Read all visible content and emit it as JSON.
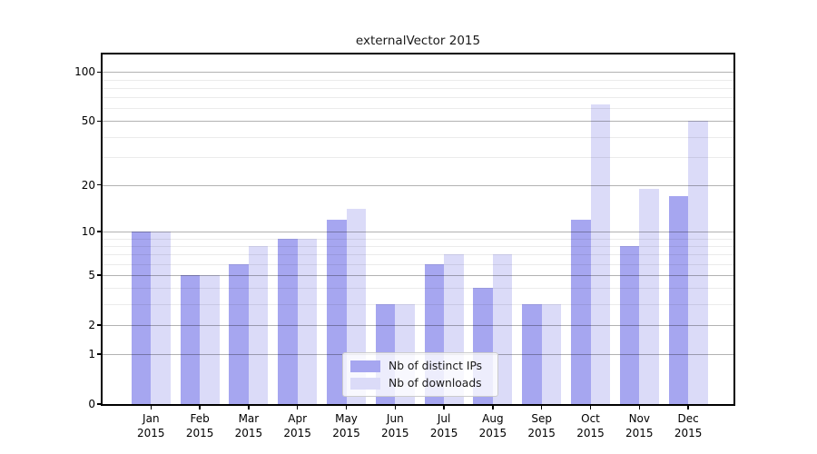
{
  "chart_data": {
    "type": "bar",
    "title": "externalVector 2015",
    "categories": [
      "Jan",
      "Feb",
      "Mar",
      "Apr",
      "May",
      "Jun",
      "Jul",
      "Aug",
      "Sep",
      "Oct",
      "Nov",
      "Dec"
    ],
    "year_label": "2015",
    "series": [
      {
        "name": "Nb of distinct IPs",
        "color": "#a6a6f0",
        "values": [
          10,
          5,
          6,
          9,
          12,
          3,
          6,
          4,
          3,
          12,
          8,
          17
        ]
      },
      {
        "name": "Nb of downloads",
        "color": "#dbdbf8",
        "values": [
          10,
          5,
          8,
          9,
          14,
          3,
          7,
          7,
          3,
          63,
          19,
          50
        ]
      }
    ],
    "xlabel": "",
    "ylabel": "",
    "y_scale": "log10(value+1)",
    "ylim": [
      0,
      128
    ],
    "y_major_ticks": [
      0,
      1,
      2,
      5,
      10,
      20,
      50,
      100
    ],
    "y_minor_gridlines": [
      3,
      4,
      6,
      7,
      8,
      9,
      30,
      40,
      60,
      70,
      80,
      90
    ],
    "grid": "on",
    "legend_position": "lower-center"
  }
}
